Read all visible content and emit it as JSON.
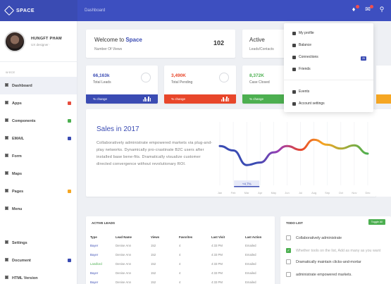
{
  "brand": {
    "name": "SPACE"
  },
  "topbar": {
    "breadcrumb": "Dashboard"
  },
  "profile": {
    "name": "HUNGFT PHAM",
    "subtitle": "UX designer ·"
  },
  "sidebar": {
    "caption": "W ECE",
    "items": [
      {
        "label": "Dashboard",
        "icon": "home-icon",
        "badge_color": ""
      },
      {
        "label": "Apps",
        "icon": "apps-icon",
        "badge_color": "#e74c3c"
      },
      {
        "label": "Components",
        "icon": "components-icon",
        "badge_color": "#4caf50"
      },
      {
        "label": "EMAIL",
        "icon": "mail-icon",
        "badge_color": "#3a4bb3"
      },
      {
        "label": "Form",
        "icon": "form-icon",
        "badge_color": ""
      },
      {
        "label": "Maps",
        "icon": "map-icon",
        "badge_color": ""
      },
      {
        "label": "Pages",
        "icon": "pages-icon",
        "badge_color": "#f5a623"
      },
      {
        "label": "Menu",
        "icon": "menu-icon",
        "badge_color": ""
      },
      {
        "label": "Settings",
        "icon": "gear-icon",
        "badge_color": ""
      },
      {
        "label": "Document",
        "icon": "document-icon",
        "badge_color": "#3a4bb3"
      },
      {
        "label": "HTML Version",
        "icon": "html-icon",
        "badge_color": ""
      }
    ]
  },
  "welcome": {
    "title_prefix": "Welcome to ",
    "title_brand": "Space",
    "subtitle": "Number Of Views",
    "value": "102"
  },
  "active": {
    "title": "Active",
    "subtitle": "Leads/Contacts"
  },
  "stats": [
    {
      "value": "66,163k",
      "label": "Total Leads",
      "footer": "% change",
      "color": "#3a4bb3",
      "value_color": "#3a4bb3"
    },
    {
      "value": "3,490K",
      "label": "Total Pending",
      "footer": "% change",
      "color": "#e8462a",
      "value_color": "#e8462a"
    },
    {
      "value": "8,372K",
      "label": "Case Closed",
      "footer": "% change",
      "color": "#4caf50",
      "value_color": "#4caf50"
    }
  ],
  "sales": {
    "title": "Sales in 2017",
    "description": "Collaboratively administrate empowered markets via plug-and-play networks. Dynamically pro-crastinate B2C users after installed base bene-fits. Dramatically visualize customer directed convergence without revolutionary ROI.",
    "tooltip": "+4.7%"
  },
  "chart_data": {
    "type": "line",
    "title": "",
    "xlabel": "",
    "ylabel": "",
    "categories": [
      "Jan",
      "Feb",
      "Mar",
      "Apr",
      "May",
      "Jun",
      "Jul",
      "Aug",
      "Sep",
      "Oct",
      "Nov",
      "Dec"
    ],
    "series": [
      {
        "values": [
          62,
          55,
          32,
          36,
          52,
          62,
          56,
          72,
          64,
          58,
          63,
          50
        ]
      }
    ],
    "ylim": [
      0,
      100
    ],
    "grid": true
  },
  "leads": {
    "title": "ACTIVE LEADS",
    "columns": [
      "Type",
      "Lead Name",
      "Views",
      "Favorites",
      "Last Visit",
      "Last Action"
    ],
    "rows": [
      [
        "Buyer",
        "Denise Ann",
        "152",
        "4",
        "4:33 PM",
        "Emailed"
      ],
      [
        "Buyer",
        "Denise Ann",
        "152",
        "4",
        "4:33 PM",
        "Emailed"
      ],
      [
        "Landlord",
        "Denise Ann",
        "152",
        "4",
        "4:33 PM",
        "Emailed"
      ],
      [
        "Buyer",
        "Denise Ann",
        "152",
        "4",
        "4:33 PM",
        "Emailed"
      ],
      [
        "Buyer",
        "Denise Ann",
        "152",
        "4",
        "4:33 PM",
        "Emailed"
      ]
    ],
    "type_colors": [
      "#3a4bb3",
      "#3a4bb3",
      "#4caf50",
      "#3a4bb3",
      "#3a4bb3"
    ]
  },
  "todo": {
    "title": "TODO LIST",
    "button": "Toggle All",
    "items": [
      {
        "text": "Collaboratively administrate",
        "done": false
      },
      {
        "text": "Whether tools on the list, Add as many as you want",
        "done": true
      },
      {
        "text": "Dramatically maintain clicks-and-mortar",
        "done": false
      },
      {
        "text": "administrate empowered markets.",
        "done": false
      }
    ]
  },
  "dropdown": {
    "items": [
      "My profile",
      "Balance",
      "Connections",
      "Friends",
      "Events",
      "Account settings"
    ],
    "badge": "25"
  },
  "colors": {
    "primary": "#3a4bb3",
    "header": "#3d4fc0",
    "success": "#4caf50",
    "danger": "#e8462a",
    "warning": "#f5a623"
  }
}
